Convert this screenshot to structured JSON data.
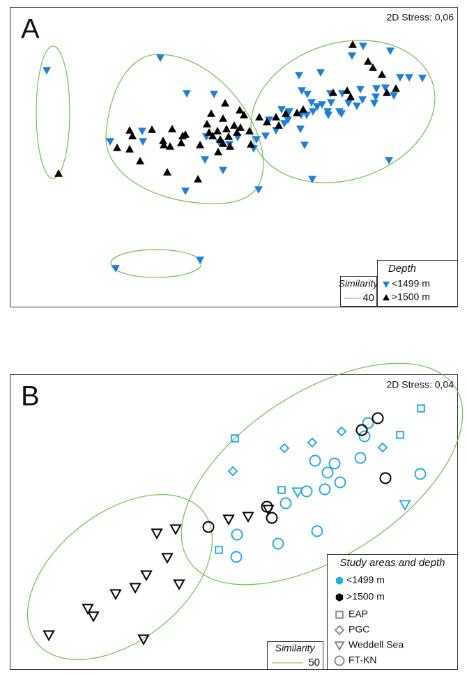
{
  "chart_data": [
    {
      "type": "scatter",
      "panel_label": "A",
      "stress": "2D Stress: 0,06",
      "xlim": [
        14,
        657
      ],
      "ylim": [
        440,
        10
      ],
      "similarity": {
        "title": "Similarity",
        "value": 40,
        "color": "#6cc24a"
      },
      "legend_title": "Depth",
      "series": [
        {
          "name": "<1499 m",
          "color": "#1e7fd8",
          "marker": "triangle-down",
          "x": [
            67,
            230,
            268,
            307,
            204,
            158,
            205,
            294,
            320,
            266,
            371,
            521,
            560,
            505,
            429,
            460,
            587,
            574,
            606,
            540,
            553,
            433,
            441,
            517,
            539,
            474,
            491,
            520,
            565,
            447,
            462,
            455,
            475,
            500,
            404,
            415,
            432,
            470,
            487,
            512,
            537,
            449,
            386,
            408,
            413,
            440,
            471,
            490,
            396,
            431,
            368,
            381,
            437,
            558,
            448,
            296,
            364,
            315,
            341,
            329,
            166,
            287
          ],
          "y": [
            101,
            83,
            134,
            135,
            188,
            203,
            203,
            229,
            244,
            274,
            272,
            66,
            73,
            80,
            108,
            104,
            111,
            111,
            112,
            127,
            126,
            130,
            135,
            128,
            139,
            134,
            134,
            143,
            137,
            147,
            150,
            153,
            147,
            148,
            157,
            160,
            165,
            160,
            160,
            152,
            148,
            160,
            172,
            177,
            172,
            165,
            165,
            163,
            187,
            185,
            200,
            195,
            208,
            230,
            257,
            196,
            213,
            205,
            197,
            207,
            385,
            373
          ]
        },
        {
          "name": ">1500 m",
          "color": "#000000",
          "marker": "triangle-up",
          "x": [
            84,
            506,
            528,
            535,
            548,
            568,
            555,
            323,
            303,
            344,
            320,
            372,
            396,
            410,
            426,
            435,
            400,
            186,
            190,
            168,
            186,
            201,
            240,
            284,
            218,
            234,
            247,
            262,
            266,
            244,
            235,
            260,
            287,
            297,
            300,
            312,
            325,
            336,
            345,
            350,
            305,
            316,
            328,
            340,
            320,
            330,
            313,
            360,
            358,
            383,
            478,
            498,
            503
          ],
          "y": [
            249,
            64,
            88,
            97,
            107,
            127,
            133,
            148,
            163,
            158,
            170,
            168,
            168,
            163,
            162,
            157,
            180,
            187,
            195,
            212,
            214,
            231,
            247,
            257,
            186,
            202,
            185,
            195,
            193,
            210,
            208,
            205,
            208,
            178,
            190,
            188,
            185,
            180,
            183,
            165,
            195,
            200,
            196,
            190,
            206,
            210,
            218,
            207,
            188,
            175,
            133,
            130,
            139
          ]
        }
      ]
    },
    {
      "type": "scatter",
      "panel_label": "B",
      "stress": "2D Stress: 0,04",
      "xlim": [
        14,
        657
      ],
      "ylim": [
        960,
        537
      ],
      "similarity": {
        "title": "Similarity",
        "value": 50,
        "color": "#6cc24a"
      },
      "legend_title": "Study areas and depth",
      "depths": [
        {
          "name": "<1499 m",
          "color": "#29abe2"
        },
        {
          "name": ">1500 m",
          "color": "#000000"
        }
      ],
      "marker_color": "#8a8a8a",
      "series": [
        {
          "name": "EAP",
          "marker": "square",
          "x": [
            604,
            337,
            574,
            404,
            314
          ],
          "y": [
            586,
            629,
            624,
            703,
            789
          ],
          "depth": [
            0,
            0,
            0,
            0,
            0
          ]
        },
        {
          "name": "PGC",
          "marker": "diamond",
          "x": [
            490,
            448,
            408,
            549,
            334
          ],
          "y": [
            619,
            635,
            643,
            642,
            676
          ],
          "depth": [
            0,
            0,
            0,
            0,
            0
          ]
        },
        {
          "name": "Weddell Sea",
          "marker": "triangle-down",
          "x": [
            427,
            581,
            328,
            356,
            385,
            252,
            225,
            240,
            210,
            194,
            257,
            166,
            126,
            134,
            70,
            206
          ],
          "y": [
            706,
            724,
            745,
            741,
            731,
            759,
            765,
            800,
            825,
            843,
            838,
            852,
            873,
            884,
            911,
            917
          ],
          "depth": [
            0,
            0,
            1,
            1,
            1,
            1,
            1,
            1,
            1,
            1,
            1,
            1,
            1,
            1,
            1,
            1
          ]
        },
        {
          "name": "FT-KN",
          "marker": "circle",
          "x": [
            528,
            523,
            517,
            452,
            480,
            470,
            603,
            440,
            488,
            466,
            410,
            340,
            399,
            455,
            339,
            542,
            519,
            553,
            383,
            390,
            299
          ],
          "y": [
            607,
            626,
            657,
            661,
            665,
            678,
            680,
            705,
            692,
            702,
            722,
            767,
            780,
            762,
            799,
            600,
            617,
            686,
            727,
            743,
            756
          ],
          "depth": [
            0,
            0,
            0,
            0,
            0,
            0,
            0,
            0,
            0,
            0,
            0,
            0,
            0,
            0,
            0,
            1,
            1,
            1,
            1,
            1,
            1
          ]
        }
      ]
    }
  ]
}
